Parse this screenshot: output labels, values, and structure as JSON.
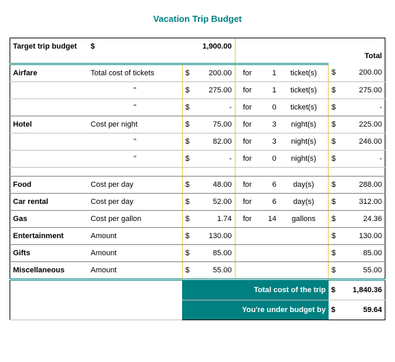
{
  "colors": {
    "accent": "#008080",
    "grid_gray": "#c0c0c0",
    "section_gray": "#808080",
    "yellow_line": "#e6c84d",
    "background": "#ffffff",
    "text": "#000000"
  },
  "title": "Vacation Trip Budget",
  "currency_symbol": "$",
  "header": {
    "target_label": "Target trip budget",
    "target_amount": "1,900.00",
    "total_label": "Total"
  },
  "word_for": "for",
  "ditto": "\"",
  "dash": "-",
  "sections": {
    "airfare": {
      "label": "Airfare",
      "desc": "Total cost of tickets",
      "unit": "ticket(s)",
      "r1": {
        "price": "200.00",
        "qty": "1",
        "total": "200.00"
      },
      "r2": {
        "price": "275.00",
        "qty": "1",
        "total": "275.00"
      },
      "r3": {
        "price": "-",
        "qty": "0",
        "total": "-"
      }
    },
    "hotel": {
      "label": "Hotel",
      "desc": "Cost per night",
      "unit": "night(s)",
      "r1": {
        "price": "75.00",
        "qty": "3",
        "total": "225.00"
      },
      "r2": {
        "price": "82.00",
        "qty": "3",
        "total": "246.00"
      },
      "r3": {
        "price": "-",
        "qty": "0",
        "total": "-"
      }
    },
    "food": {
      "label": "Food",
      "desc": "Cost per day",
      "unit": "day(s)",
      "price": "48.00",
      "qty": "6",
      "total": "288.00"
    },
    "car": {
      "label": "Car rental",
      "desc": "Cost per day",
      "unit": "day(s)",
      "price": "52.00",
      "qty": "6",
      "total": "312.00"
    },
    "gas": {
      "label": "Gas",
      "desc": "Cost per gallon",
      "unit": "gallons",
      "price": "1.74",
      "qty": "14",
      "total": "24.36"
    },
    "ent": {
      "label": "Entertainment",
      "desc": "Amount",
      "price": "130.00",
      "total": "130.00"
    },
    "gifts": {
      "label": "Gifts",
      "desc": "Amount",
      "price": "85.00",
      "total": "85.00"
    },
    "misc": {
      "label": "Miscellaneous",
      "desc": "Amount",
      "price": "55.00",
      "total": "55.00"
    }
  },
  "summary": {
    "total_label": "Total cost of the trip",
    "total_value": "1,840.36",
    "under_label": "You're under budget by",
    "under_value": "59.64"
  }
}
